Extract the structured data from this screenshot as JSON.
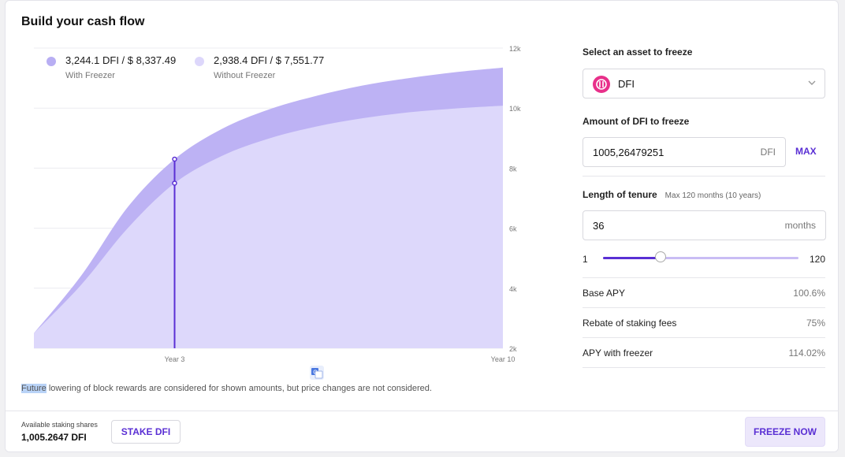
{
  "header": {
    "title": "Build your cash flow"
  },
  "legend": {
    "with": {
      "value": "3,244.1 DFI / $ 8,337.49",
      "label": "With Freezer",
      "color": "#b8aef3"
    },
    "without": {
      "value": "2,938.4 DFI / $ 7,551.77",
      "label": "Without Freezer",
      "color": "#ddd7fb"
    }
  },
  "chart_data": {
    "type": "area",
    "y_ticks": [
      "2k",
      "4k",
      "6k",
      "8k",
      "10k",
      "12k"
    ],
    "ylim": [
      2000,
      12000
    ],
    "x_labels": [
      {
        "label": "Year 3",
        "month": 36
      },
      {
        "label": "Year 10",
        "month": 120
      }
    ],
    "xlim": [
      0,
      120
    ],
    "series": [
      {
        "name": "With Freezer",
        "color": "#bdb2f4",
        "points": [
          [
            0,
            2500
          ],
          [
            12,
            4400
          ],
          [
            24,
            6700
          ],
          [
            36,
            8300
          ],
          [
            48,
            9300
          ],
          [
            60,
            9950
          ],
          [
            72,
            10400
          ],
          [
            84,
            10750
          ],
          [
            96,
            11000
          ],
          [
            108,
            11200
          ],
          [
            120,
            11350
          ]
        ]
      },
      {
        "name": "Without Freezer",
        "color": "#ddd8fb",
        "points": [
          [
            0,
            2500
          ],
          [
            12,
            4100
          ],
          [
            24,
            6000
          ],
          [
            36,
            7500
          ],
          [
            48,
            8400
          ],
          [
            60,
            8980
          ],
          [
            72,
            9380
          ],
          [
            84,
            9660
          ],
          [
            96,
            9860
          ],
          [
            108,
            9990
          ],
          [
            120,
            10080
          ]
        ]
      }
    ],
    "marker_month": 36,
    "marker_color": "#5a2fd4"
  },
  "footnote": {
    "highlight": "Future",
    "text": " lowering of block rewards are considered for shown amounts, but price changes are not considered."
  },
  "form": {
    "asset_label": "Select an asset to freeze",
    "asset_value": "DFI",
    "amount_label": "Amount of DFI to freeze",
    "amount_value": "1005,26479251",
    "amount_unit": "DFI",
    "max_label": "MAX",
    "tenure_label": "Length of tenure",
    "tenure_hint": "Max 120 months (10 years)",
    "tenure_value": "36",
    "tenure_unit": "months",
    "slider": {
      "min_label": "1",
      "max_label": "120",
      "min": 1,
      "max": 120,
      "value": 36
    }
  },
  "stats": [
    {
      "label": "Base APY",
      "value": "100.6%"
    },
    {
      "label": "Rebate of staking fees",
      "value": "75%"
    },
    {
      "label": "APY with freezer",
      "value": "114.02%"
    }
  ],
  "footer": {
    "available_label": "Available staking shares",
    "available_value": "1,005.2647 DFI",
    "stake_label": "STAKE DFI",
    "freeze_label": "FREEZE NOW"
  },
  "colors": {
    "accent": "#5a2fd4",
    "asset_logo": "#e8308a"
  }
}
